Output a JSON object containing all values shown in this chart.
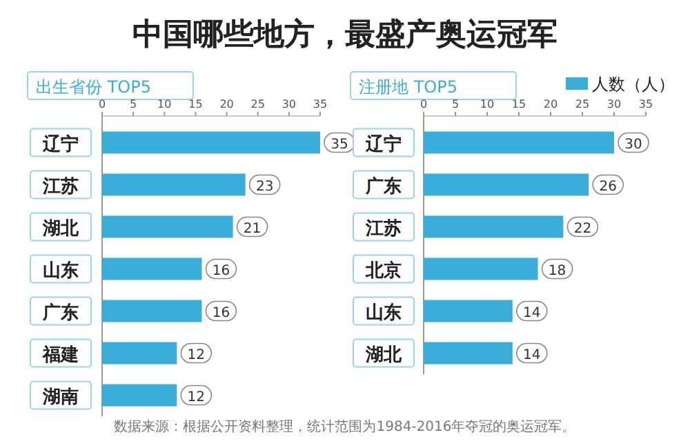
{
  "chart_data": [
    {
      "type": "bar",
      "orientation": "horizontal",
      "title": "中国哪些地方，最盛产奥运冠军",
      "subtitle": "出生省份 TOP5",
      "categories": [
        "辽宁",
        "江苏",
        "湖北",
        "山东",
        "广东",
        "福建",
        "湖南"
      ],
      "series": [
        {
          "color": "#3aaed8",
          "values": [
            35,
            23,
            21,
            16,
            16,
            12,
            12
          ]
        }
      ],
      "xlim": [
        0,
        35
      ],
      "xticks": [
        0,
        5,
        10,
        15,
        20,
        25,
        30,
        35
      ],
      "data_labels": true,
      "legend": false,
      "annotations": [
        "数据来源：根据公开资料整理，统计范围为1984-2016年夺冠的奥运冠军。"
      ]
    },
    {
      "type": "bar",
      "orientation": "horizontal",
      "subtitle": "注册地 TOP5",
      "categories": [
        "辽宁",
        "广东",
        "江苏",
        "北京",
        "山东",
        "湖北"
      ],
      "series": [
        {
          "name": "人数（人）",
          "color": "#3aaed8",
          "values": [
            30,
            26,
            22,
            18,
            14,
            14
          ]
        }
      ],
      "xlim": [
        0,
        35
      ],
      "xticks": [
        0,
        5,
        10,
        15,
        20,
        25,
        30,
        35
      ],
      "data_labels": true,
      "legend": "top right"
    }
  ]
}
